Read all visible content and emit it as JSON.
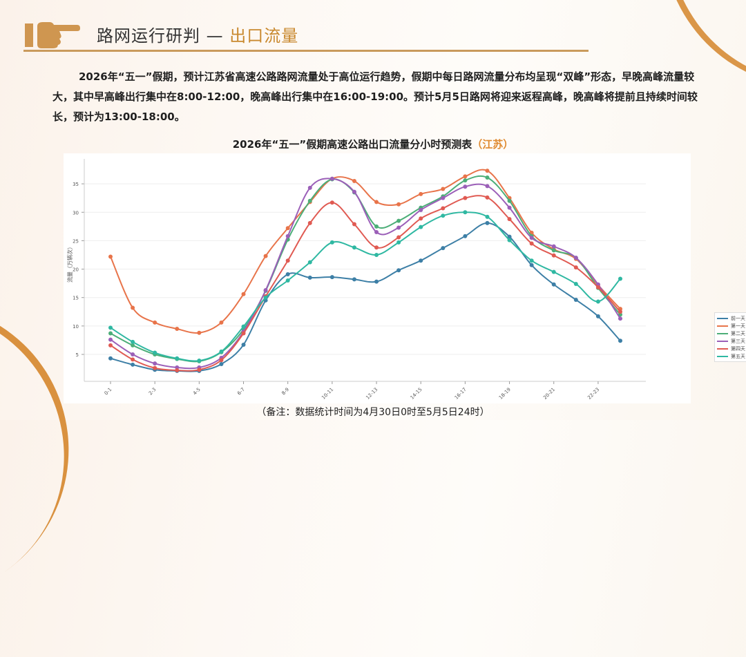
{
  "header": {
    "title_main": "路网运行研判 — ",
    "title_accent": "出口流量",
    "icon": "pointing-hand-icon"
  },
  "paragraph": "2026年“五一”假期，预计江苏省高速公路路网流量处于高位运行趋势，假期中每日路网流量分布均呈现“双峰”形态，早晚高峰流量较大，其中早高峰出行集中在8:00-12:00，晚高峰出行集中在16:00-19:00。预计5月5日路网将迎来返程高峰，晚高峰将提前且持续时间较长，预计为13:00-18:00。",
  "chart_title": {
    "main": "2026年“五一”假期高速公路出口流量分小时预测表",
    "accent": "（江苏）"
  },
  "footnote": "（备注：数据统计时间为4月30日0时至5月5日24时）",
  "colors": {
    "accent": "#c9892f",
    "前一天": "#3d7fa6",
    "第一天": "#e8744a",
    "第二天": "#4cae78",
    "第三天": "#9b5fb8",
    "第四天": "#e05a52",
    "第五天": "#2fb8a2"
  },
  "chart_data": {
    "type": "line",
    "title": "2026年“五一”假期高速公路出口流量分小时预测表（江苏）",
    "xlabel": "",
    "ylabel": "流量（万辆次）",
    "ylim": [
      0,
      38
    ],
    "yticks": [
      5,
      10,
      15,
      20,
      25,
      30,
      35
    ],
    "grid": true,
    "legend_position": "upper right",
    "categories": [
      "0-1",
      "1-2",
      "2-3",
      "3-4",
      "4-5",
      "5-6",
      "6-7",
      "7-8",
      "8-9",
      "9-10",
      "10-11",
      "11-12",
      "12-13",
      "13-14",
      "14-15",
      "15-16",
      "16-17",
      "17-18",
      "18-19",
      "19-20",
      "20-21",
      "21-22",
      "22-23",
      "23-24"
    ],
    "xtick_labels": [
      "0-1",
      "2-3",
      "4-5",
      "6-7",
      "8-9",
      "10-11",
      "12-13",
      "14-15",
      "16-17",
      "18-19",
      "20-21",
      "22-23"
    ],
    "series": [
      {
        "name": "前一天",
        "values": [
          4.3,
          3.2,
          2.3,
          2.1,
          2.1,
          3.3,
          6.7,
          14.5,
          19.1,
          18.5,
          18.6,
          18.2,
          17.8,
          19.8,
          21.5,
          23.7,
          25.8,
          28.1,
          25.7,
          20.7,
          17.3,
          14.6,
          11.7,
          7.4
        ]
      },
      {
        "name": "第一天",
        "values": [
          22.2,
          13.2,
          10.6,
          9.5,
          8.8,
          10.6,
          15.6,
          22.3,
          27.2,
          31.8,
          35.9,
          35.5,
          31.8,
          31.4,
          33.2,
          34.1,
          36.3,
          37.3,
          32.5,
          26.4,
          23.5,
          21.8,
          17.2,
          13.0
        ]
      },
      {
        "name": "第二天",
        "values": [
          8.7,
          6.6,
          5.0,
          4.2,
          3.8,
          5.4,
          9.4,
          16.2,
          25.2,
          32.0,
          35.8,
          33.5,
          27.5,
          28.5,
          30.8,
          32.8,
          35.6,
          36.1,
          32.0,
          25.8,
          23.3,
          22.0,
          16.7,
          12.0
        ]
      },
      {
        "name": "第三天",
        "values": [
          7.6,
          5.0,
          3.4,
          2.7,
          2.7,
          4.4,
          9.0,
          16.3,
          25.8,
          34.3,
          35.9,
          33.6,
          26.5,
          27.3,
          30.4,
          32.5,
          34.5,
          34.6,
          30.8,
          25.5,
          24.0,
          22.0,
          17.3,
          11.3
        ]
      },
      {
        "name": "第四天",
        "values": [
          6.6,
          4.1,
          2.6,
          2.2,
          2.3,
          4.0,
          8.7,
          15.2,
          21.5,
          28.1,
          31.7,
          27.9,
          23.8,
          25.6,
          28.9,
          30.7,
          32.5,
          32.6,
          28.8,
          24.5,
          22.4,
          20.3,
          16.8,
          12.5
        ]
      },
      {
        "name": "第五天",
        "values": [
          9.7,
          7.2,
          5.3,
          4.3,
          3.9,
          5.5,
          9.9,
          15.0,
          18.0,
          21.2,
          24.7,
          23.8,
          22.5,
          24.7,
          27.4,
          29.4,
          30.0,
          29.2,
          25.1,
          21.5,
          19.5,
          17.4,
          14.3,
          18.3
        ]
      }
    ]
  }
}
